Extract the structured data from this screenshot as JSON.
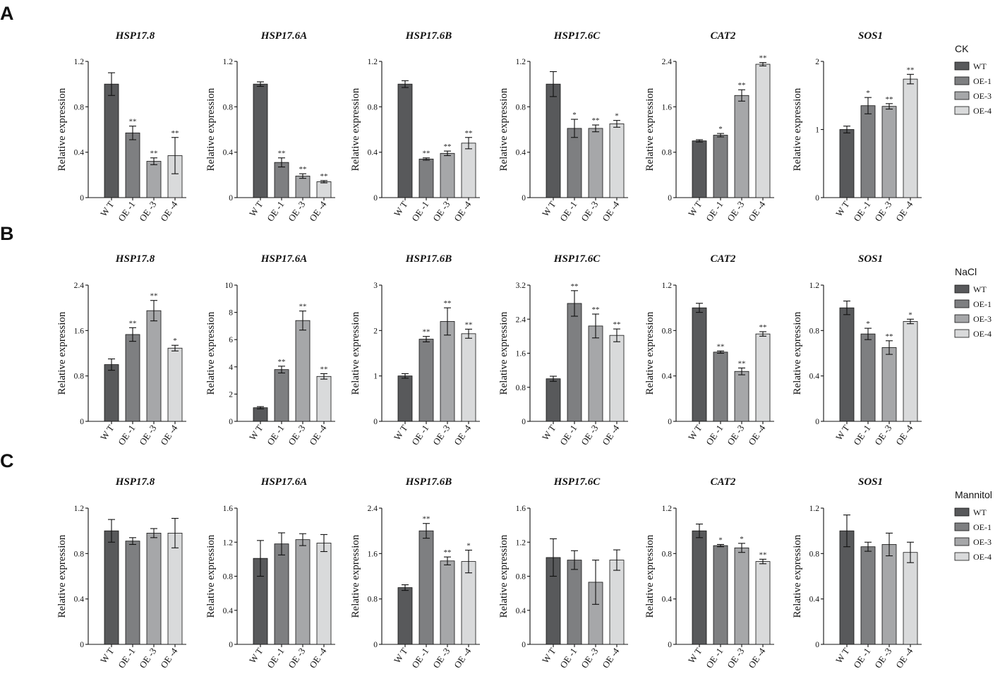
{
  "colors": {
    "WT": "#58595b",
    "OE-1": "#7e7f81",
    "OE-3": "#a6a7a9",
    "OE-4": "#d9dadb"
  },
  "legends": [
    {
      "title": "CK",
      "items": [
        "WT",
        "OE-1",
        "OE-3",
        "OE-4"
      ]
    },
    {
      "title": "NaCl",
      "items": [
        "WT",
        "OE-1",
        "OE-3",
        "OE-4"
      ]
    },
    {
      "title": "Mannitol",
      "items": [
        "WT",
        "OE-1",
        "OE-3",
        "OE-4"
      ]
    }
  ],
  "chart_data": [
    {
      "panel": "A",
      "condition": "CK",
      "charts": [
        {
          "type": "bar",
          "title": "HSP17.8",
          "ylabel": "Relative expression",
          "ylim": [
            0,
            1.2
          ],
          "yticks": [
            "0",
            "0.4",
            "0.8",
            "1.2"
          ],
          "categories": [
            "WT",
            "OE-1",
            "OE-3",
            "OE-4"
          ],
          "values": [
            1.0,
            0.57,
            0.32,
            0.37
          ],
          "errors": [
            0.1,
            0.06,
            0.03,
            0.16
          ],
          "significance": [
            "",
            "**",
            "**",
            "**"
          ]
        },
        {
          "type": "bar",
          "title": "HSP17.6A",
          "ylabel": "Relative expression",
          "ylim": [
            0,
            1.2
          ],
          "yticks": [
            "0",
            "0.4",
            "0.8",
            "1.2"
          ],
          "categories": [
            "WT",
            "OE-1",
            "OE-3",
            "OE-4"
          ],
          "values": [
            1.0,
            0.31,
            0.19,
            0.14
          ],
          "errors": [
            0.02,
            0.04,
            0.02,
            0.01
          ],
          "significance": [
            "",
            "**",
            "**",
            "**"
          ]
        },
        {
          "type": "bar",
          "title": "HSP17.6B",
          "ylabel": "Relative expression",
          "ylim": [
            0,
            1.2
          ],
          "yticks": [
            "0",
            "0.4",
            "0.8",
            "1.2"
          ],
          "categories": [
            "WT",
            "OE-1",
            "OE-3",
            "OE-4"
          ],
          "values": [
            1.0,
            0.34,
            0.39,
            0.48
          ],
          "errors": [
            0.03,
            0.01,
            0.02,
            0.05
          ],
          "significance": [
            "",
            "**",
            "**",
            "**"
          ]
        },
        {
          "type": "bar",
          "title": "HSP17.6C",
          "ylabel": "Relative expression",
          "ylim": [
            0,
            1.2
          ],
          "yticks": [
            "0",
            "0.4",
            "0.8",
            "1.2"
          ],
          "categories": [
            "WT",
            "OE-1",
            "OE-3",
            "OE-4"
          ],
          "values": [
            1.0,
            0.61,
            0.61,
            0.65
          ],
          "errors": [
            0.11,
            0.08,
            0.03,
            0.03
          ],
          "significance": [
            "",
            "*",
            "**",
            "*"
          ]
        },
        {
          "type": "bar",
          "title": "CAT2",
          "ylabel": "Relative expression",
          "ylim": [
            0,
            2.4
          ],
          "yticks": [
            "0",
            "0.8",
            "1.6",
            "2.4"
          ],
          "categories": [
            "WT",
            "OE-1",
            "OE-3",
            "OE-4"
          ],
          "values": [
            1.0,
            1.1,
            1.8,
            2.35
          ],
          "errors": [
            0.02,
            0.03,
            0.1,
            0.03
          ],
          "significance": [
            "",
            "*",
            "**",
            "**"
          ]
        },
        {
          "type": "bar",
          "title": "SOS1",
          "ylabel": "Relative expression",
          "ylim": [
            0,
            2
          ],
          "yticks": [
            "0",
            "1",
            "2"
          ],
          "categories": [
            "WT",
            "OE-1",
            "OE-3",
            "OE-4"
          ],
          "values": [
            1.0,
            1.35,
            1.34,
            1.74
          ],
          "errors": [
            0.05,
            0.12,
            0.04,
            0.07
          ],
          "significance": [
            "",
            "*",
            "**",
            "**"
          ]
        }
      ]
    },
    {
      "panel": "B",
      "condition": "NaCl",
      "charts": [
        {
          "type": "bar",
          "title": "HSP17.8",
          "ylabel": "Relative expression",
          "ylim": [
            0,
            2.4
          ],
          "yticks": [
            "0",
            "0.8",
            "1.6",
            "2.4"
          ],
          "categories": [
            "WT",
            "OE-1",
            "OE-3",
            "OE-4"
          ],
          "values": [
            1.0,
            1.53,
            1.95,
            1.29
          ],
          "errors": [
            0.1,
            0.12,
            0.18,
            0.05
          ],
          "significance": [
            "",
            "**",
            "**",
            "*"
          ]
        },
        {
          "type": "bar",
          "title": "HSP17.6A",
          "ylabel": "Relative expression",
          "ylim": [
            0,
            10
          ],
          "yticks": [
            "0",
            "2",
            "4",
            "6",
            "8",
            "10"
          ],
          "categories": [
            "WT",
            "OE-1",
            "OE-3",
            "OE-4"
          ],
          "values": [
            1.0,
            3.8,
            7.4,
            3.3
          ],
          "errors": [
            0.08,
            0.25,
            0.7,
            0.2
          ],
          "significance": [
            "",
            "**",
            "**",
            "**"
          ]
        },
        {
          "type": "bar",
          "title": "HSP17.6B",
          "ylabel": "Relative expression",
          "ylim": [
            0,
            3
          ],
          "yticks": [
            "0",
            "1",
            "2",
            "3"
          ],
          "categories": [
            "WT",
            "OE-1",
            "OE-3",
            "OE-4"
          ],
          "values": [
            1.0,
            1.81,
            2.2,
            1.93
          ],
          "errors": [
            0.05,
            0.06,
            0.3,
            0.1
          ],
          "significance": [
            "",
            "**",
            "**",
            "**"
          ]
        },
        {
          "type": "bar",
          "title": "HSP17.6C",
          "ylabel": "Relative expression",
          "ylim": [
            0,
            3.2
          ],
          "yticks": [
            "0",
            "0.8",
            "1.6",
            "2.4",
            "3.2"
          ],
          "categories": [
            "WT",
            "OE-1",
            "OE-3",
            "OE-4"
          ],
          "values": [
            1.0,
            2.77,
            2.24,
            2.02
          ],
          "errors": [
            0.06,
            0.3,
            0.28,
            0.15
          ],
          "significance": [
            "",
            "**",
            "**",
            "**"
          ]
        },
        {
          "type": "bar",
          "title": "CAT2",
          "ylabel": "Relative expression",
          "ylim": [
            0,
            1.2
          ],
          "yticks": [
            "0",
            "0.4",
            "0.8",
            "1.2"
          ],
          "categories": [
            "WT",
            "OE-1",
            "OE-3",
            "OE-4"
          ],
          "values": [
            1.0,
            0.61,
            0.44,
            0.77
          ],
          "errors": [
            0.04,
            0.01,
            0.03,
            0.02
          ],
          "significance": [
            "",
            "**",
            "**",
            "**"
          ]
        },
        {
          "type": "bar",
          "title": "SOS1",
          "ylabel": "Relative expression",
          "ylim": [
            0,
            1.2
          ],
          "yticks": [
            "0",
            "0.4",
            "0.8",
            "1.2"
          ],
          "categories": [
            "WT",
            "OE-1",
            "OE-3",
            "OE-4"
          ],
          "values": [
            1.0,
            0.77,
            0.65,
            0.88
          ],
          "errors": [
            0.06,
            0.05,
            0.06,
            0.02
          ],
          "significance": [
            "",
            "*",
            "**",
            "*"
          ]
        }
      ]
    },
    {
      "panel": "C",
      "condition": "Mannitol",
      "charts": [
        {
          "type": "bar",
          "title": "HSP17.8",
          "ylabel": "Relative expression",
          "ylim": [
            0,
            1.2
          ],
          "yticks": [
            "0",
            "0.4",
            "0.8",
            "1.2"
          ],
          "categories": [
            "WT",
            "OE-1",
            "OE-3",
            "OE-4"
          ],
          "values": [
            1.0,
            0.91,
            0.98,
            0.98
          ],
          "errors": [
            0.1,
            0.03,
            0.04,
            0.13
          ],
          "significance": [
            "",
            "",
            "",
            ""
          ]
        },
        {
          "type": "bar",
          "title": "HSP17.6A",
          "ylabel": "Relative expression",
          "ylim": [
            0,
            1.6
          ],
          "yticks": [
            "0",
            "0.4",
            "0.8",
            "1.2",
            "1.6"
          ],
          "categories": [
            "WT",
            "OE-1",
            "OE-3",
            "OE-4"
          ],
          "values": [
            1.01,
            1.18,
            1.23,
            1.19
          ],
          "errors": [
            0.21,
            0.13,
            0.07,
            0.1
          ],
          "significance": [
            "",
            "",
            "",
            ""
          ]
        },
        {
          "type": "bar",
          "title": "HSP17.6B",
          "ylabel": "Relative expression",
          "ylim": [
            0,
            2.4
          ],
          "yticks": [
            "0",
            "0.8",
            "1.6",
            "2.4"
          ],
          "categories": [
            "WT",
            "OE-1",
            "OE-3",
            "OE-4"
          ],
          "values": [
            1.0,
            2.0,
            1.47,
            1.46
          ],
          "errors": [
            0.05,
            0.13,
            0.07,
            0.2
          ],
          "significance": [
            "",
            "**",
            "**",
            "*"
          ]
        },
        {
          "type": "bar",
          "title": "HSP17.6C",
          "ylabel": "Relative expression",
          "ylim": [
            0,
            1.6
          ],
          "yticks": [
            "0",
            "0.4",
            "0.8",
            "1.2",
            "1.6"
          ],
          "categories": [
            "WT",
            "OE-1",
            "OE-3",
            "OE-4"
          ],
          "values": [
            1.02,
            0.99,
            0.73,
            0.99
          ],
          "errors": [
            0.22,
            0.11,
            0.26,
            0.12
          ],
          "significance": [
            "",
            "",
            "",
            ""
          ]
        },
        {
          "type": "bar",
          "title": "CAT2",
          "ylabel": "Relative expression",
          "ylim": [
            0,
            1.2
          ],
          "yticks": [
            "0",
            "0.4",
            "0.8",
            "1.2"
          ],
          "categories": [
            "WT",
            "OE-1",
            "OE-3",
            "OE-4"
          ],
          "values": [
            1.0,
            0.87,
            0.85,
            0.73
          ],
          "errors": [
            0.06,
            0.01,
            0.04,
            0.02
          ],
          "significance": [
            "",
            "*",
            "*",
            "**"
          ]
        },
        {
          "type": "bar",
          "title": "SOS1",
          "ylabel": "Relative expression",
          "ylim": [
            0,
            1.2
          ],
          "yticks": [
            "0",
            "0.4",
            "0.8",
            "1.2"
          ],
          "categories": [
            "WT",
            "OE-1",
            "OE-3",
            "OE-4"
          ],
          "values": [
            1.0,
            0.86,
            0.88,
            0.81
          ],
          "errors": [
            0.14,
            0.04,
            0.1,
            0.09
          ],
          "significance": [
            "",
            "",
            "",
            ""
          ]
        }
      ]
    }
  ]
}
